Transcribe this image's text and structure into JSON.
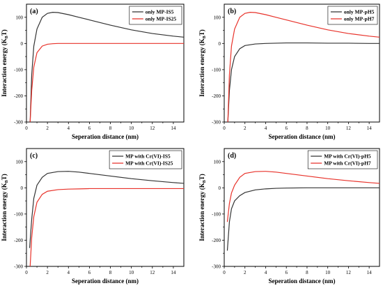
{
  "chart_data": [
    {
      "type": "line",
      "panel_label": "(a)",
      "xlabel": "Seperation distance (nm)",
      "ylabel": "Interaction energy (K_BT)",
      "xlim": [
        0,
        15
      ],
      "ylim": [
        -300,
        150
      ],
      "xticks": [
        0,
        2,
        4,
        6,
        8,
        10,
        12,
        14
      ],
      "yticks": [
        -300,
        -200,
        -100,
        0,
        100
      ],
      "legend_position": "top-right",
      "series": [
        {
          "name": "only MP-IS5",
          "color": "#333333",
          "x": [
            0.35,
            0.5,
            0.7,
            1.0,
            1.5,
            2.0,
            2.5,
            3.0,
            4.0,
            5.0,
            6.0,
            8.0,
            10.0,
            12.0,
            14.0,
            15.0
          ],
          "y": [
            -300,
            -120,
            -10,
            55,
            100,
            115,
            119,
            118,
            110,
            100,
            90,
            70,
            52,
            38,
            28,
            24
          ]
        },
        {
          "name": "only MP-IS25",
          "color": "#e8322a",
          "x": [
            0.35,
            0.5,
            0.7,
            1.0,
            1.5,
            2.0,
            2.5,
            3.0,
            4.0,
            5.0,
            6.0,
            8.0,
            10.0,
            12.0,
            14.0,
            15.0
          ],
          "y": [
            -300,
            -180,
            -90,
            -35,
            -10,
            -3,
            -1,
            0,
            0,
            0,
            0,
            0,
            0,
            0,
            0,
            0
          ]
        }
      ]
    },
    {
      "type": "line",
      "panel_label": "(b)",
      "xlabel": "Seperation distance (nm)",
      "ylabel": "Interaction energy (K_BT)",
      "xlim": [
        0,
        15
      ],
      "ylim": [
        -300,
        150
      ],
      "xticks": [
        0,
        2,
        4,
        6,
        8,
        10,
        12,
        14
      ],
      "yticks": [
        -300,
        -200,
        -100,
        0,
        100
      ],
      "legend_position": "top-right",
      "series": [
        {
          "name": "only MP-pH5",
          "color": "#333333",
          "x": [
            0.35,
            0.5,
            0.7,
            1.0,
            1.5,
            2.0,
            3.0,
            4.0,
            5.0,
            6.0,
            7.0,
            8.0,
            10.0,
            12.0,
            14.0,
            15.0
          ],
          "y": [
            -300,
            -180,
            -100,
            -50,
            -20,
            -8,
            -2,
            0,
            1,
            2,
            2,
            2,
            1,
            1,
            0,
            0
          ]
        },
        {
          "name": "only MP-pH7",
          "color": "#e8322a",
          "x": [
            0.35,
            0.5,
            0.7,
            1.0,
            1.5,
            2.0,
            2.5,
            3.0,
            4.0,
            5.0,
            6.0,
            8.0,
            10.0,
            12.0,
            14.0,
            15.0
          ],
          "y": [
            -300,
            -120,
            -10,
            55,
            100,
            115,
            119,
            118,
            110,
            100,
            90,
            70,
            52,
            38,
            28,
            24
          ]
        }
      ]
    },
    {
      "type": "line",
      "panel_label": "(c)",
      "xlabel": "Seperation distance (nm)",
      "ylabel": "Interaction energy (K_BT)",
      "xlim": [
        0,
        15
      ],
      "ylim": [
        -300,
        150
      ],
      "xticks": [
        0,
        2,
        4,
        6,
        8,
        10,
        12,
        14
      ],
      "yticks": [
        -300,
        -200,
        -100,
        0,
        100
      ],
      "legend_position": "top-right",
      "series": [
        {
          "name": "MP with Cr(VI)-IS5",
          "color": "#333333",
          "x": [
            0.3,
            0.5,
            0.7,
            1.0,
            1.5,
            2.0,
            3.0,
            4.0,
            5.0,
            6.0,
            8.0,
            10.0,
            12.0,
            14.0,
            15.0
          ],
          "y": [
            -230,
            -120,
            -40,
            10,
            40,
            55,
            62,
            63,
            60,
            55,
            45,
            35,
            27,
            20,
            17
          ]
        },
        {
          "name": "MP with Cr(VI)-IS25",
          "color": "#e8322a",
          "x": [
            0.35,
            0.5,
            0.7,
            1.0,
            1.5,
            2.0,
            3.0,
            4.0,
            5.0,
            6.0,
            8.0,
            10.0,
            12.0,
            14.0,
            15.0
          ],
          "y": [
            -300,
            -190,
            -110,
            -55,
            -25,
            -13,
            -7,
            -5,
            -4,
            -3,
            -3,
            -3,
            -3,
            -3,
            -3
          ]
        }
      ]
    },
    {
      "type": "line",
      "panel_label": "(d)",
      "xlabel": "Seperation distance (nm)",
      "ylabel": "Interaction energy (K_BT)",
      "xlim": [
        0,
        15
      ],
      "ylim": [
        -300,
        150
      ],
      "xticks": [
        0,
        2,
        4,
        6,
        8,
        10,
        12,
        14
      ],
      "yticks": [
        -300,
        -200,
        -100,
        0,
        100
      ],
      "legend_position": "top-right",
      "series": [
        {
          "name": "MP with Cr(VI)-pH5",
          "color": "#333333",
          "x": [
            0.3,
            0.5,
            0.7,
            1.0,
            1.5,
            2.0,
            3.0,
            4.0,
            5.0,
            6.0,
            8.0,
            10.0,
            12.0,
            14.0,
            15.0
          ],
          "y": [
            -240,
            -130,
            -80,
            -50,
            -30,
            -18,
            -8,
            -4,
            -2,
            -1,
            0,
            0,
            0,
            0,
            0
          ]
        },
        {
          "name": "MP with Cr(VI)-pH7",
          "color": "#e8322a",
          "x": [
            0.3,
            0.5,
            0.7,
            1.0,
            1.5,
            2.0,
            3.0,
            4.0,
            5.0,
            6.0,
            8.0,
            10.0,
            12.0,
            14.0,
            15.0
          ],
          "y": [
            -130,
            -60,
            -20,
            10,
            40,
            55,
            62,
            63,
            60,
            55,
            45,
            35,
            27,
            20,
            17
          ]
        }
      ]
    }
  ]
}
